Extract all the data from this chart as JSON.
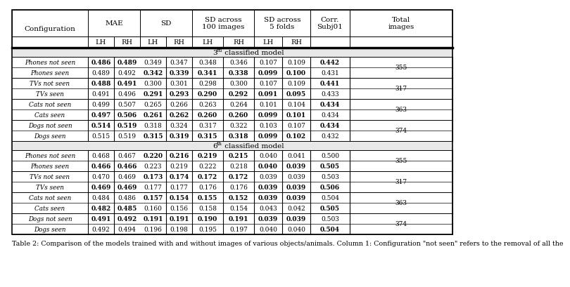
{
  "caption": "Table 2: Comparison of the models trained with and without images of various objects/animals. Column 1: Configuration \"not seen\" refers to the removal of all the",
  "section1_label": "3rd classified model",
  "section2_label": "6th classified model",
  "rows": [
    {
      "section": 1,
      "group": "Phones",
      "config": "Phones not seen",
      "mae_lh": "0.486",
      "mae_rh": "0.489",
      "sd_lh": "0.349",
      "sd_rh": "0.347",
      "sd100_lh": "0.348",
      "sd100_rh": "0.346",
      "sd5_lh": "0.107",
      "sd5_rh": "0.109",
      "corr": "0.442",
      "total": "355",
      "bold_mae_lh": true,
      "bold_mae_rh": true,
      "bold_sd_lh": false,
      "bold_sd_rh": false,
      "bold_sd100_lh": false,
      "bold_sd100_rh": false,
      "bold_sd5_lh": false,
      "bold_sd5_rh": false,
      "bold_corr": true
    },
    {
      "section": 1,
      "group": "Phones",
      "config": "Phones seen",
      "mae_lh": "0.489",
      "mae_rh": "0.492",
      "sd_lh": "0.342",
      "sd_rh": "0.339",
      "sd100_lh": "0.341",
      "sd100_rh": "0.338",
      "sd5_lh": "0.099",
      "sd5_rh": "0.100",
      "corr": "0.431",
      "total": "355",
      "bold_mae_lh": false,
      "bold_mae_rh": false,
      "bold_sd_lh": true,
      "bold_sd_rh": true,
      "bold_sd100_lh": true,
      "bold_sd100_rh": true,
      "bold_sd5_lh": true,
      "bold_sd5_rh": true,
      "bold_corr": false
    },
    {
      "section": 1,
      "group": "TVs",
      "config": "TVs not seen",
      "mae_lh": "0.488",
      "mae_rh": "0.491",
      "sd_lh": "0.300",
      "sd_rh": "0.301",
      "sd100_lh": "0.298",
      "sd100_rh": "0.300",
      "sd5_lh": "0.107",
      "sd5_rh": "0.109",
      "corr": "0.441",
      "total": "317",
      "bold_mae_lh": true,
      "bold_mae_rh": true,
      "bold_sd_lh": false,
      "bold_sd_rh": false,
      "bold_sd100_lh": false,
      "bold_sd100_rh": false,
      "bold_sd5_lh": false,
      "bold_sd5_rh": false,
      "bold_corr": true
    },
    {
      "section": 1,
      "group": "TVs",
      "config": "TVs seen",
      "mae_lh": "0.491",
      "mae_rh": "0.496",
      "sd_lh": "0.291",
      "sd_rh": "0.293",
      "sd100_lh": "0.290",
      "sd100_rh": "0.292",
      "sd5_lh": "0.091",
      "sd5_rh": "0.095",
      "corr": "0.433",
      "total": "317",
      "bold_mae_lh": false,
      "bold_mae_rh": false,
      "bold_sd_lh": true,
      "bold_sd_rh": true,
      "bold_sd100_lh": true,
      "bold_sd100_rh": true,
      "bold_sd5_lh": true,
      "bold_sd5_rh": true,
      "bold_corr": false
    },
    {
      "section": 1,
      "group": "Cats",
      "config": "Cats not seen",
      "mae_lh": "0.499",
      "mae_rh": "0.507",
      "sd_lh": "0.265",
      "sd_rh": "0.266",
      "sd100_lh": "0.263",
      "sd100_rh": "0.264",
      "sd5_lh": "0.101",
      "sd5_rh": "0.104",
      "corr": "0.434",
      "total": "363",
      "bold_mae_lh": false,
      "bold_mae_rh": false,
      "bold_sd_lh": false,
      "bold_sd_rh": false,
      "bold_sd100_lh": false,
      "bold_sd100_rh": false,
      "bold_sd5_lh": false,
      "bold_sd5_rh": false,
      "bold_corr": true
    },
    {
      "section": 1,
      "group": "Cats",
      "config": "Cats seen",
      "mae_lh": "0.497",
      "mae_rh": "0.506",
      "sd_lh": "0.261",
      "sd_rh": "0.262",
      "sd100_lh": "0.260",
      "sd100_rh": "0.260",
      "sd5_lh": "0.099",
      "sd5_rh": "0.101",
      "corr": "0.434",
      "total": "363",
      "bold_mae_lh": true,
      "bold_mae_rh": true,
      "bold_sd_lh": true,
      "bold_sd_rh": true,
      "bold_sd100_lh": true,
      "bold_sd100_rh": true,
      "bold_sd5_lh": true,
      "bold_sd5_rh": true,
      "bold_corr": false
    },
    {
      "section": 1,
      "group": "Dogs",
      "config": "Dogs not seen",
      "mae_lh": "0.514",
      "mae_rh": "0.519",
      "sd_lh": "0.318",
      "sd_rh": "0.324",
      "sd100_lh": "0.317",
      "sd100_rh": "0.322",
      "sd5_lh": "0.103",
      "sd5_rh": "0.107",
      "corr": "0.434",
      "total": "374",
      "bold_mae_lh": true,
      "bold_mae_rh": true,
      "bold_sd_lh": false,
      "bold_sd_rh": false,
      "bold_sd100_lh": false,
      "bold_sd100_rh": false,
      "bold_sd5_lh": false,
      "bold_sd5_rh": false,
      "bold_corr": true
    },
    {
      "section": 1,
      "group": "Dogs",
      "config": "Dogs seen",
      "mae_lh": "0.515",
      "mae_rh": "0.519",
      "sd_lh": "0.315",
      "sd_rh": "0.319",
      "sd100_lh": "0.315",
      "sd100_rh": "0.318",
      "sd5_lh": "0.099",
      "sd5_rh": "0.102",
      "corr": "0.432",
      "total": "374",
      "bold_mae_lh": false,
      "bold_mae_rh": false,
      "bold_sd_lh": true,
      "bold_sd_rh": true,
      "bold_sd100_lh": true,
      "bold_sd100_rh": true,
      "bold_sd5_lh": true,
      "bold_sd5_rh": true,
      "bold_corr": false
    },
    {
      "section": 2,
      "group": "Phones",
      "config": "Phones not seen",
      "mae_lh": "0.468",
      "mae_rh": "0.467",
      "sd_lh": "0.220",
      "sd_rh": "0.216",
      "sd100_lh": "0.219",
      "sd100_rh": "0.215",
      "sd5_lh": "0.040",
      "sd5_rh": "0.041",
      "corr": "0.500",
      "total": "355",
      "bold_mae_lh": false,
      "bold_mae_rh": false,
      "bold_sd_lh": true,
      "bold_sd_rh": true,
      "bold_sd100_lh": true,
      "bold_sd100_rh": true,
      "bold_sd5_lh": false,
      "bold_sd5_rh": false,
      "bold_corr": false
    },
    {
      "section": 2,
      "group": "Phones",
      "config": "Phones seen",
      "mae_lh": "0.466",
      "mae_rh": "0.466",
      "sd_lh": "0.223",
      "sd_rh": "0.219",
      "sd100_lh": "0.222",
      "sd100_rh": "0.218",
      "sd5_lh": "0.040",
      "sd5_rh": "0.039",
      "corr": "0.505",
      "total": "355",
      "bold_mae_lh": true,
      "bold_mae_rh": true,
      "bold_sd_lh": false,
      "bold_sd_rh": false,
      "bold_sd100_lh": false,
      "bold_sd100_rh": false,
      "bold_sd5_lh": true,
      "bold_sd5_rh": true,
      "bold_corr": true
    },
    {
      "section": 2,
      "group": "TVs",
      "config": "TVs not seen",
      "mae_lh": "0.470",
      "mae_rh": "0.469",
      "sd_lh": "0.173",
      "sd_rh": "0.174",
      "sd100_lh": "0.172",
      "sd100_rh": "0.172",
      "sd5_lh": "0.039",
      "sd5_rh": "0.039",
      "corr": "0.503",
      "total": "317",
      "bold_mae_lh": false,
      "bold_mae_rh": false,
      "bold_sd_lh": true,
      "bold_sd_rh": true,
      "bold_sd100_lh": true,
      "bold_sd100_rh": true,
      "bold_sd5_lh": false,
      "bold_sd5_rh": false,
      "bold_corr": false
    },
    {
      "section": 2,
      "group": "TVs",
      "config": "TVs seen",
      "mae_lh": "0.469",
      "mae_rh": "0.469",
      "sd_lh": "0.177",
      "sd_rh": "0.177",
      "sd100_lh": "0.176",
      "sd100_rh": "0.176",
      "sd5_lh": "0.039",
      "sd5_rh": "0.039",
      "corr": "0.506",
      "total": "317",
      "bold_mae_lh": true,
      "bold_mae_rh": true,
      "bold_sd_lh": false,
      "bold_sd_rh": false,
      "bold_sd100_lh": false,
      "bold_sd100_rh": false,
      "bold_sd5_lh": true,
      "bold_sd5_rh": true,
      "bold_corr": true
    },
    {
      "section": 2,
      "group": "Cats",
      "config": "Cats not seen",
      "mae_lh": "0.484",
      "mae_rh": "0.486",
      "sd_lh": "0.157",
      "sd_rh": "0.154",
      "sd100_lh": "0.155",
      "sd100_rh": "0.152",
      "sd5_lh": "0.039",
      "sd5_rh": "0.039",
      "corr": "0.504",
      "total": "363",
      "bold_mae_lh": false,
      "bold_mae_rh": false,
      "bold_sd_lh": true,
      "bold_sd_rh": true,
      "bold_sd100_lh": true,
      "bold_sd100_rh": true,
      "bold_sd5_lh": true,
      "bold_sd5_rh": true,
      "bold_corr": false
    },
    {
      "section": 2,
      "group": "Cats",
      "config": "Cats seen",
      "mae_lh": "0.482",
      "mae_rh": "0.485",
      "sd_lh": "0.160",
      "sd_rh": "0.156",
      "sd100_lh": "0.158",
      "sd100_rh": "0.154",
      "sd5_lh": "0.043",
      "sd5_rh": "0.042",
      "corr": "0.505",
      "total": "363",
      "bold_mae_lh": true,
      "bold_mae_rh": true,
      "bold_sd_lh": false,
      "bold_sd_rh": false,
      "bold_sd100_lh": false,
      "bold_sd100_rh": false,
      "bold_sd5_lh": false,
      "bold_sd5_rh": false,
      "bold_corr": true
    },
    {
      "section": 2,
      "group": "Dogs",
      "config": "Dogs not seen",
      "mae_lh": "0.491",
      "mae_rh": "0.492",
      "sd_lh": "0.191",
      "sd_rh": "0.191",
      "sd100_lh": "0.190",
      "sd100_rh": "0.191",
      "sd5_lh": "0.039",
      "sd5_rh": "0.039",
      "corr": "0.503",
      "total": "374",
      "bold_mae_lh": true,
      "bold_mae_rh": true,
      "bold_sd_lh": true,
      "bold_sd_rh": true,
      "bold_sd100_lh": true,
      "bold_sd100_rh": true,
      "bold_sd5_lh": true,
      "bold_sd5_rh": true,
      "bold_corr": false
    },
    {
      "section": 2,
      "group": "Dogs",
      "config": "Dogs seen",
      "mae_lh": "0.492",
      "mae_rh": "0.494",
      "sd_lh": "0.196",
      "sd_rh": "0.198",
      "sd100_lh": "0.195",
      "sd100_rh": "0.197",
      "sd5_lh": "0.040",
      "sd5_rh": "0.040",
      "corr": "0.504",
      "total": "374",
      "bold_mae_lh": false,
      "bold_mae_rh": false,
      "bold_sd_lh": false,
      "bold_sd_rh": false,
      "bold_sd100_lh": false,
      "bold_sd100_rh": false,
      "bold_sd5_lh": false,
      "bold_sd5_rh": false,
      "bold_corr": true
    }
  ]
}
